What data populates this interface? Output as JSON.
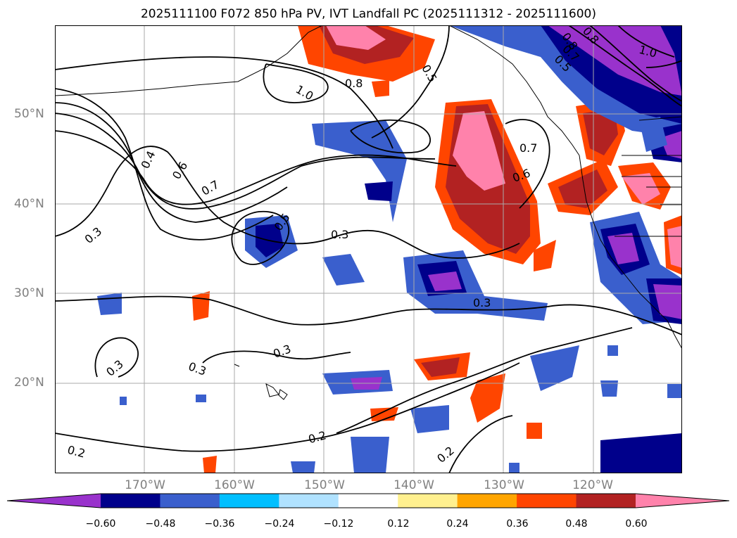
{
  "title": "2025111100 F072 850 hPa PV, IVT Landfall PC (2025111312 - 2025111600)",
  "axes": {
    "lat_labels": [
      "50°N",
      "40°N",
      "30°N",
      "20°N"
    ],
    "lon_labels": [
      "170°W",
      "160°W",
      "150°W",
      "140°W",
      "130°W",
      "120°W"
    ]
  },
  "colorbar": {
    "colors": [
      "#9932cc",
      "#00008b",
      "#3a5fcd",
      "#00bfff",
      "#b0e2ff",
      "#ffffff",
      "#fff08f",
      "#ffa500",
      "#ff4500",
      "#b22222",
      "#ff82ab"
    ],
    "tick_labels": [
      "−0.60",
      "−0.48",
      "−0.36",
      "−0.24",
      "−0.12",
      "0.12",
      "0.24",
      "0.36",
      "0.48",
      "0.60"
    ]
  },
  "contour_labels": [
    "1.0",
    "0.8",
    "0.5",
    "0.4",
    "0.6",
    "0.7",
    "0.3",
    "0.5",
    "0.3",
    "0.3",
    "0.7",
    "0.6",
    "0.3",
    "0.3",
    "0.3",
    "0.2",
    "0.2",
    "0.2",
    "0.8",
    "1.0",
    "0.5",
    "0.8",
    "0.7"
  ]
}
